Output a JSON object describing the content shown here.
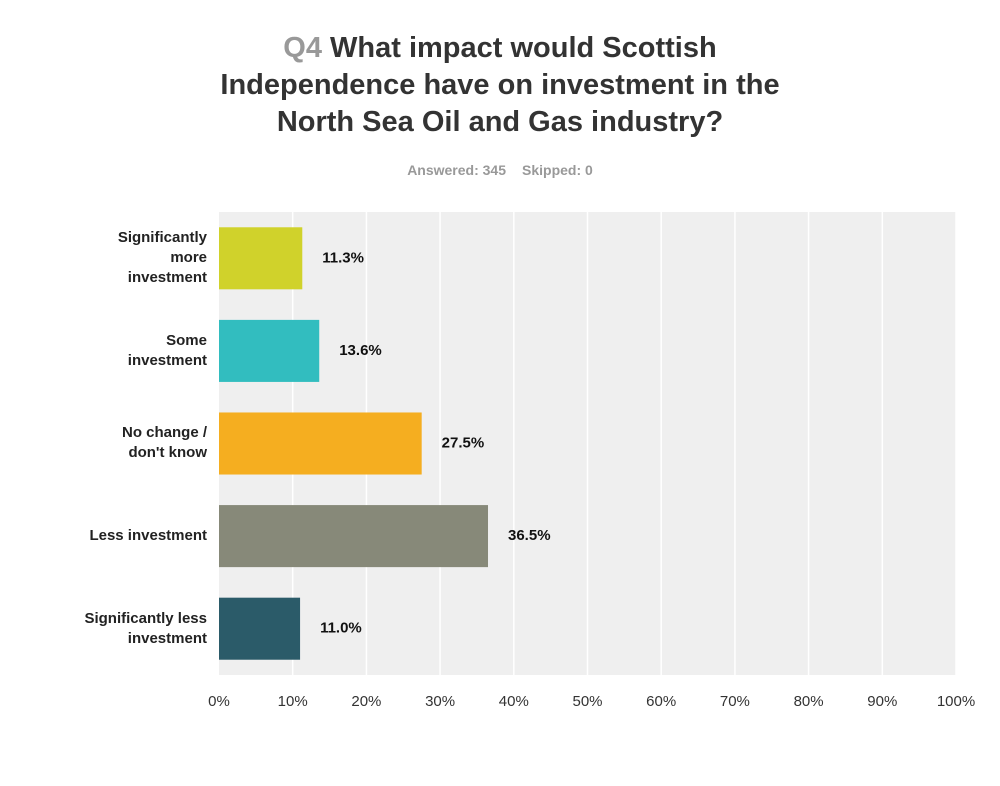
{
  "chart_data": {
    "type": "bar",
    "orientation": "horizontal",
    "question_number": "Q4",
    "title": "What impact would Scottish Independence have on investment in the North Sea Oil and Gas industry?",
    "answered": "Answered: 345",
    "skipped": "Skipped: 0",
    "categories": [
      "Significantly more investment",
      "Some investment",
      "No change / don't know",
      "Less investment",
      "Significantly less investment"
    ],
    "values": [
      11.3,
      13.6,
      27.5,
      36.5,
      11.0
    ],
    "value_labels": [
      "11.3%",
      "13.6%",
      "27.5%",
      "36.5%",
      "11.0%"
    ],
    "colors": [
      "#d0d22b",
      "#32bdbf",
      "#f5ae20",
      "#878979",
      "#2b5b69"
    ],
    "xlim": [
      0,
      100
    ],
    "xticks": [
      {
        "value": 0,
        "label": "0%"
      },
      {
        "value": 10,
        "label": "10%"
      },
      {
        "value": 20,
        "label": "20%"
      },
      {
        "value": 30,
        "label": "30%"
      },
      {
        "value": 40,
        "label": "40%"
      },
      {
        "value": 50,
        "label": "50%"
      },
      {
        "value": 60,
        "label": "60%"
      },
      {
        "value": 70,
        "label": "70%"
      },
      {
        "value": 80,
        "label": "80%"
      },
      {
        "value": 90,
        "label": "90%"
      },
      {
        "value": 100,
        "label": "100%"
      }
    ],
    "grid": true
  }
}
